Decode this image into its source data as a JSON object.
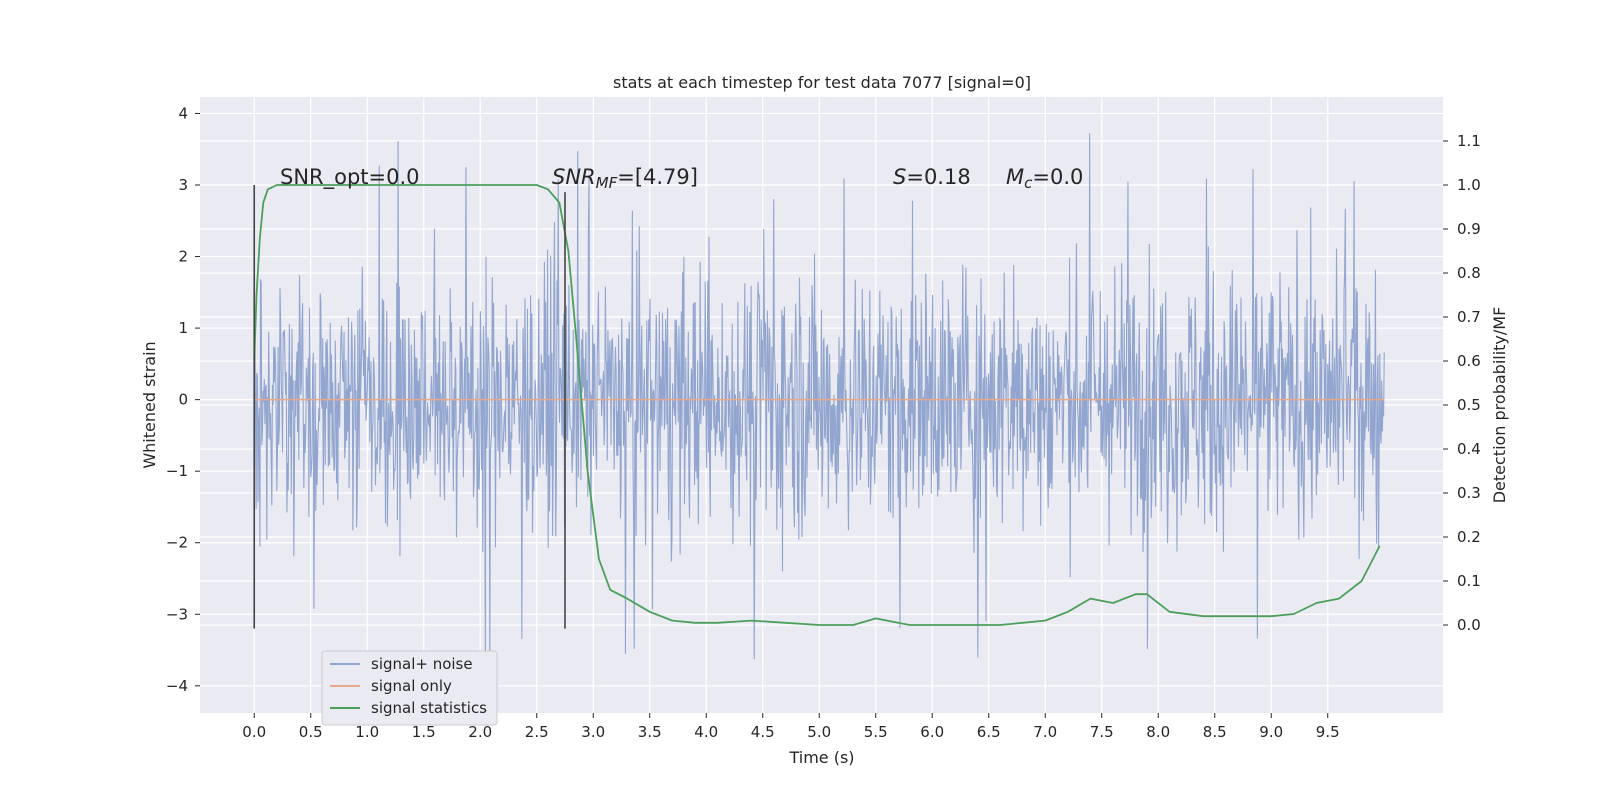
{
  "chart_data": {
    "type": "line",
    "title": "stats at each timestep for test data 7077 [signal=0]",
    "xlabel": "Time (s)",
    "ylabel_left": "Whitened strain",
    "ylabel_right": "Detection probability/MF",
    "xlim": [
      -0.48,
      10.52
    ],
    "ylim_left": [
      -4.38,
      4.23
    ],
    "ylim_right": [
      -0.2,
      1.2
    ],
    "x_ticks": [
      "0.0",
      "0.5",
      "1.0",
      "1.5",
      "2.0",
      "2.5",
      "3.0",
      "3.5",
      "4.0",
      "4.5",
      "5.0",
      "5.5",
      "6.0",
      "6.5",
      "7.0",
      "7.5",
      "8.0",
      "8.5",
      "9.0",
      "9.5"
    ],
    "y_ticks_left": [
      "4",
      "3",
      "2",
      "1",
      "0",
      "−1",
      "−2",
      "−3",
      "−4"
    ],
    "y_ticks_right": [
      "1.1",
      "1.0",
      "0.9",
      "0.8",
      "0.7",
      "0.6",
      "0.5",
      "0.4",
      "0.3",
      "0.2",
      "0.1",
      "0.0"
    ],
    "grid": true,
    "legend_position": "lower-left",
    "vertical_markers": [
      {
        "x": 0.0,
        "y_range": [
          -3.2,
          3.0
        ]
      },
      {
        "x": 2.75,
        "y_range": [
          -3.2,
          2.9
        ]
      }
    ],
    "annotations": [
      {
        "text": "SNR_opt=0.0"
      },
      {
        "text_italic": "SNR",
        "subscript": "MF",
        "text_rest": "=[4.79]"
      },
      {
        "text_italic": "S",
        "text_rest": "=0.18"
      },
      {
        "text_italic": "M",
        "subscript": "c",
        "text_rest": "=0.0"
      }
    ],
    "series": [
      {
        "name": "signal+ noise",
        "color": "#91a5cf",
        "axis": "left",
        "x_range": [
          0.0,
          10.0
        ],
        "envelope_typical": [
          -1.4,
          1.8
        ],
        "envelope_peak": [
          -4.05,
          3.85
        ]
      },
      {
        "name": "signal only",
        "color": "#e8a889",
        "axis": "left",
        "x": [
          0.0,
          10.0
        ],
        "y": [
          0.0,
          0.0
        ]
      },
      {
        "name": "signal statistics",
        "color": "#4c9f5b",
        "axis": "right",
        "x": [
          0.0,
          0.02,
          0.05,
          0.08,
          0.12,
          0.2,
          0.3,
          0.5,
          1.0,
          1.5,
          2.0,
          2.3,
          2.5,
          2.6,
          2.7,
          2.78,
          2.85,
          2.95,
          3.05,
          3.15,
          3.3,
          3.5,
          3.7,
          3.9,
          4.1,
          4.4,
          4.7,
          5.0,
          5.3,
          5.5,
          5.8,
          6.2,
          6.6,
          7.0,
          7.2,
          7.4,
          7.6,
          7.8,
          7.9,
          8.1,
          8.4,
          8.7,
          9.0,
          9.2,
          9.4,
          9.6,
          9.8,
          9.9,
          9.96
        ],
        "y": [
          0.6,
          0.75,
          0.88,
          0.96,
          0.99,
          1.0,
          1.0,
          1.0,
          1.0,
          1.0,
          1.0,
          1.0,
          1.0,
          0.99,
          0.96,
          0.85,
          0.65,
          0.35,
          0.15,
          0.08,
          0.06,
          0.03,
          0.01,
          0.005,
          0.005,
          0.01,
          0.005,
          0.0,
          0.0,
          0.015,
          0.0,
          0.0,
          0.0,
          0.01,
          0.03,
          0.06,
          0.05,
          0.07,
          0.07,
          0.03,
          0.02,
          0.02,
          0.02,
          0.025,
          0.05,
          0.06,
          0.1,
          0.15,
          0.18
        ]
      }
    ]
  }
}
